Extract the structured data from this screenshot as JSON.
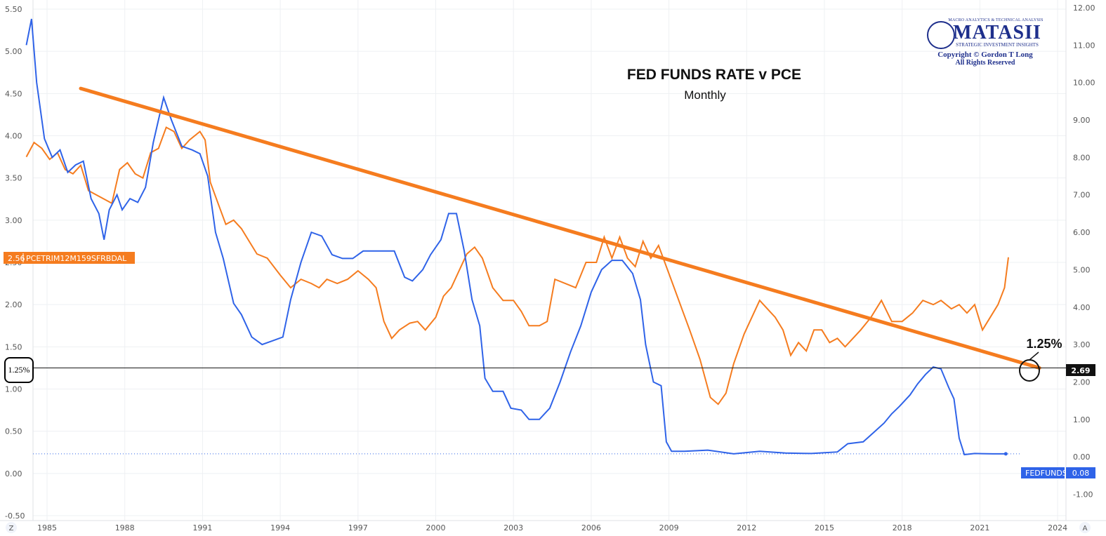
{
  "chart_data": {
    "type": "line",
    "title": "FED FUNDS RATE v PCE",
    "subtitle": "Monthly",
    "x_ticks": [
      "1985",
      "1988",
      "1991",
      "1994",
      "1997",
      "2000",
      "2003",
      "2006",
      "2009",
      "2012",
      "2015",
      "2018",
      "2021",
      "2024"
    ],
    "left_axis": {
      "ticks": [
        "5.50",
        "5.00",
        "4.50",
        "4.00",
        "3.50",
        "3.00",
        "2.50",
        "2.00",
        "1.50",
        "1.00",
        "0.50",
        "0.00",
        "-0.50"
      ],
      "ylim": [
        -0.5,
        5.5
      ]
    },
    "right_axis": {
      "ticks": [
        "12.00",
        "11.00",
        "10.00",
        "9.00",
        "8.00",
        "7.00",
        "6.00",
        "5.00",
        "4.00",
        "3.00",
        "2.00",
        "1.00",
        "0.00",
        "-1.00"
      ],
      "ylim": [
        -1.0,
        12.0
      ]
    },
    "series": [
      {
        "name": "PCETRIM12M159SFRBDAL",
        "axis": "left",
        "color": "#f57c1f",
        "last_value": "2.56",
        "points": [
          [
            1984.2,
            3.75
          ],
          [
            1984.5,
            3.92
          ],
          [
            1984.8,
            3.85
          ],
          [
            1985.1,
            3.72
          ],
          [
            1985.4,
            3.8
          ],
          [
            1985.7,
            3.6
          ],
          [
            1986.0,
            3.55
          ],
          [
            1986.3,
            3.65
          ],
          [
            1986.6,
            3.35
          ],
          [
            1986.9,
            3.3
          ],
          [
            1987.2,
            3.25
          ],
          [
            1987.5,
            3.2
          ],
          [
            1987.8,
            3.6
          ],
          [
            1988.1,
            3.68
          ],
          [
            1988.4,
            3.55
          ],
          [
            1988.7,
            3.5
          ],
          [
            1989.0,
            3.8
          ],
          [
            1989.3,
            3.85
          ],
          [
            1989.6,
            4.1
          ],
          [
            1989.9,
            4.05
          ],
          [
            1990.2,
            3.85
          ],
          [
            1990.5,
            3.95
          ],
          [
            1990.9,
            4.05
          ],
          [
            1991.1,
            3.95
          ],
          [
            1991.3,
            3.45
          ],
          [
            1991.6,
            3.2
          ],
          [
            1991.9,
            2.95
          ],
          [
            1992.2,
            3.0
          ],
          [
            1992.5,
            2.9
          ],
          [
            1992.8,
            2.75
          ],
          [
            1993.1,
            2.6
          ],
          [
            1993.5,
            2.55
          ],
          [
            1994.0,
            2.35
          ],
          [
            1994.4,
            2.2
          ],
          [
            1994.8,
            2.3
          ],
          [
            1995.2,
            2.25
          ],
          [
            1995.5,
            2.2
          ],
          [
            1995.8,
            2.3
          ],
          [
            1996.2,
            2.25
          ],
          [
            1996.6,
            2.3
          ],
          [
            1997.0,
            2.4
          ],
          [
            1997.4,
            2.3
          ],
          [
            1997.7,
            2.2
          ],
          [
            1998.0,
            1.8
          ],
          [
            1998.3,
            1.6
          ],
          [
            1998.6,
            1.7
          ],
          [
            1999.0,
            1.78
          ],
          [
            1999.3,
            1.8
          ],
          [
            1999.6,
            1.7
          ],
          [
            2000.0,
            1.85
          ],
          [
            2000.3,
            2.1
          ],
          [
            2000.6,
            2.2
          ],
          [
            2000.9,
            2.4
          ],
          [
            2001.2,
            2.6
          ],
          [
            2001.5,
            2.68
          ],
          [
            2001.8,
            2.55
          ],
          [
            2002.2,
            2.2
          ],
          [
            2002.6,
            2.05
          ],
          [
            2003.0,
            2.05
          ],
          [
            2003.3,
            1.92
          ],
          [
            2003.6,
            1.75
          ],
          [
            2004.0,
            1.75
          ],
          [
            2004.3,
            1.8
          ],
          [
            2004.6,
            2.3
          ],
          [
            2005.0,
            2.25
          ],
          [
            2005.4,
            2.2
          ],
          [
            2005.8,
            2.5
          ],
          [
            2006.2,
            2.5
          ],
          [
            2006.5,
            2.8
          ],
          [
            2006.8,
            2.55
          ],
          [
            2007.1,
            2.8
          ],
          [
            2007.4,
            2.55
          ],
          [
            2007.7,
            2.45
          ],
          [
            2008.0,
            2.75
          ],
          [
            2008.3,
            2.55
          ],
          [
            2008.6,
            2.7
          ],
          [
            2008.9,
            2.45
          ],
          [
            2009.2,
            2.2
          ],
          [
            2009.5,
            1.95
          ],
          [
            2009.8,
            1.7
          ],
          [
            2010.2,
            1.35
          ],
          [
            2010.6,
            0.9
          ],
          [
            2010.9,
            0.82
          ],
          [
            2011.2,
            0.95
          ],
          [
            2011.5,
            1.3
          ],
          [
            2011.9,
            1.65
          ],
          [
            2012.2,
            1.85
          ],
          [
            2012.5,
            2.05
          ],
          [
            2012.8,
            1.95
          ],
          [
            2013.1,
            1.85
          ],
          [
            2013.4,
            1.7
          ],
          [
            2013.7,
            1.4
          ],
          [
            2014.0,
            1.55
          ],
          [
            2014.3,
            1.45
          ],
          [
            2014.6,
            1.7
          ],
          [
            2014.9,
            1.7
          ],
          [
            2015.2,
            1.55
          ],
          [
            2015.5,
            1.6
          ],
          [
            2015.8,
            1.5
          ],
          [
            2016.1,
            1.6
          ],
          [
            2016.4,
            1.7
          ],
          [
            2016.8,
            1.85
          ],
          [
            2017.2,
            2.05
          ],
          [
            2017.6,
            1.8
          ],
          [
            2018.0,
            1.8
          ],
          [
            2018.4,
            1.9
          ],
          [
            2018.8,
            2.05
          ],
          [
            2019.2,
            2.0
          ],
          [
            2019.5,
            2.05
          ],
          [
            2019.9,
            1.95
          ],
          [
            2020.2,
            2.0
          ],
          [
            2020.5,
            1.9
          ],
          [
            2020.8,
            2.0
          ],
          [
            2021.1,
            1.7
          ],
          [
            2021.4,
            1.85
          ],
          [
            2021.7,
            2.0
          ],
          [
            2021.95,
            2.2
          ],
          [
            2022.1,
            2.56
          ]
        ]
      },
      {
        "name": "FEDFUNDS",
        "axis": "right",
        "color": "#2f63e8",
        "last_value": "0.08",
        "points": [
          [
            1984.2,
            11.0
          ],
          [
            1984.4,
            11.7
          ],
          [
            1984.6,
            10.0
          ],
          [
            1984.9,
            8.5
          ],
          [
            1985.2,
            8.0
          ],
          [
            1985.5,
            8.2
          ],
          [
            1985.8,
            7.6
          ],
          [
            1986.1,
            7.8
          ],
          [
            1986.4,
            7.9
          ],
          [
            1986.7,
            6.9
          ],
          [
            1987.0,
            6.5
          ],
          [
            1987.2,
            5.8
          ],
          [
            1987.4,
            6.6
          ],
          [
            1987.7,
            7.0
          ],
          [
            1987.9,
            6.6
          ],
          [
            1988.2,
            6.9
          ],
          [
            1988.5,
            6.8
          ],
          [
            1988.8,
            7.2
          ],
          [
            1989.1,
            8.4
          ],
          [
            1989.5,
            9.6
          ],
          [
            1989.8,
            9.0
          ],
          [
            1990.2,
            8.3
          ],
          [
            1990.6,
            8.2
          ],
          [
            1990.9,
            8.1
          ],
          [
            1991.2,
            7.5
          ],
          [
            1991.5,
            6.0
          ],
          [
            1991.8,
            5.3
          ],
          [
            1992.2,
            4.1
          ],
          [
            1992.5,
            3.8
          ],
          [
            1992.9,
            3.2
          ],
          [
            1993.3,
            3.0
          ],
          [
            1993.7,
            3.1
          ],
          [
            1994.1,
            3.2
          ],
          [
            1994.4,
            4.2
          ],
          [
            1994.8,
            5.2
          ],
          [
            1995.2,
            6.0
          ],
          [
            1995.6,
            5.9
          ],
          [
            1996.0,
            5.4
          ],
          [
            1996.4,
            5.3
          ],
          [
            1996.8,
            5.3
          ],
          [
            1997.2,
            5.5
          ],
          [
            1997.6,
            5.5
          ],
          [
            1998.0,
            5.5
          ],
          [
            1998.4,
            5.5
          ],
          [
            1998.8,
            4.8
          ],
          [
            1999.1,
            4.7
          ],
          [
            1999.5,
            5.0
          ],
          [
            1999.8,
            5.4
          ],
          [
            2000.2,
            5.8
          ],
          [
            2000.5,
            6.5
          ],
          [
            2000.8,
            6.5
          ],
          [
            2001.1,
            5.5
          ],
          [
            2001.4,
            4.2
          ],
          [
            2001.7,
            3.5
          ],
          [
            2001.9,
            2.1
          ],
          [
            2002.2,
            1.75
          ],
          [
            2002.6,
            1.75
          ],
          [
            2002.9,
            1.3
          ],
          [
            2003.3,
            1.25
          ],
          [
            2003.6,
            1.0
          ],
          [
            2004.0,
            1.0
          ],
          [
            2004.4,
            1.3
          ],
          [
            2004.8,
            2.0
          ],
          [
            2005.2,
            2.8
          ],
          [
            2005.6,
            3.5
          ],
          [
            2006.0,
            4.4
          ],
          [
            2006.4,
            5.0
          ],
          [
            2006.8,
            5.25
          ],
          [
            2007.2,
            5.25
          ],
          [
            2007.6,
            4.9
          ],
          [
            2007.9,
            4.2
          ],
          [
            2008.1,
            3.0
          ],
          [
            2008.4,
            2.0
          ],
          [
            2008.7,
            1.9
          ],
          [
            2008.9,
            0.4
          ],
          [
            2009.1,
            0.15
          ],
          [
            2009.6,
            0.15
          ],
          [
            2010.5,
            0.18
          ],
          [
            2011.5,
            0.08
          ],
          [
            2012.5,
            0.15
          ],
          [
            2013.5,
            0.1
          ],
          [
            2014.5,
            0.09
          ],
          [
            2015.5,
            0.13
          ],
          [
            2015.9,
            0.35
          ],
          [
            2016.5,
            0.4
          ],
          [
            2016.9,
            0.65
          ],
          [
            2017.3,
            0.9
          ],
          [
            2017.6,
            1.15
          ],
          [
            2017.9,
            1.35
          ],
          [
            2018.3,
            1.65
          ],
          [
            2018.6,
            1.95
          ],
          [
            2018.9,
            2.2
          ],
          [
            2019.2,
            2.4
          ],
          [
            2019.5,
            2.35
          ],
          [
            2019.8,
            1.85
          ],
          [
            2020.0,
            1.55
          ],
          [
            2020.2,
            0.5
          ],
          [
            2020.4,
            0.06
          ],
          [
            2020.8,
            0.09
          ],
          [
            2021.5,
            0.08
          ],
          [
            2022.0,
            0.08
          ]
        ]
      }
    ],
    "trend_line": {
      "color": "#f57c1f",
      "start": [
        1986.3,
        4.56
      ],
      "end": [
        2023.3,
        1.25
      ]
    },
    "horizontal_line": {
      "left_value": 1.25,
      "left_label": "1.25%",
      "right_label": "2.69"
    },
    "callout": "1.25%",
    "grid": true
  },
  "logo": {
    "tagline": "MACRO ANALYTICS & TECHNICAL ANALYSIS",
    "name": "MATASII",
    "subtitle": "STRATEGIC INVESTMENT INSIGHTS",
    "copyright": "Copyright © Gordon T Long",
    "rights": "All Rights Reserved"
  },
  "axis_buttons": {
    "left": "Z",
    "right": "A"
  }
}
